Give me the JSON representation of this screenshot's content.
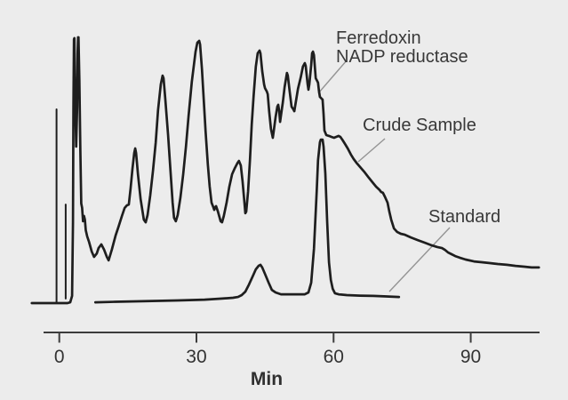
{
  "figure": {
    "kind": "chromatogram",
    "background_color": "#ececec"
  },
  "colors": {
    "trace": "#1e1e1e",
    "axis": "#3c3c3c",
    "leader_line": "#949494",
    "text": "#383838"
  },
  "labels": {
    "annotation_peak_line1": "Ferredoxin",
    "annotation_peak_line2": "NADP reductase",
    "annotation_crude": "Crude Sample",
    "annotation_standard": "Standard",
    "x_axis_title": "Min"
  },
  "chart_data": {
    "type": "line",
    "title": "",
    "xlabel": "Min",
    "ylabel": "",
    "y_units": "detector response, normalized 0-1 (no y-axis drawn)",
    "xlim": [
      -6,
      105
    ],
    "grid": false,
    "legend_position": "inline-annotations",
    "x_ticks": [
      {
        "t": 0,
        "label": "0"
      },
      {
        "t": 30,
        "label": "30"
      },
      {
        "t": 60,
        "label": "60"
      },
      {
        "t": 90,
        "label": "90"
      }
    ],
    "annotations": [
      {
        "text": "Ferredoxin NADP reductase",
        "target_series": "Crude Sample",
        "target_t_min": 56.5
      },
      {
        "text": "Crude Sample",
        "target_series": "Crude Sample",
        "target_t_min": 65
      },
      {
        "text": "Standard",
        "target_series": "Standard",
        "target_t_min": 73
      }
    ],
    "key_retention_times_min": {
      "standard_main_peak": 57.3,
      "standard_minor_peak": 44.0,
      "crude_major_peaks": [
        16.6,
        22.6,
        30.6,
        39.3,
        43.8,
        47.9,
        49.8,
        53.7,
        55.5
      ]
    },
    "event_marks": [
      {
        "name": "injection-mark-a",
        "t": -0.6,
        "v1": 0.003,
        "v2": 0.729
      },
      {
        "name": "injection-mark-b",
        "t": 1.4,
        "v1": 0.017,
        "v2": 0.371
      }
    ],
    "series": [
      {
        "name": "Crude Sample",
        "points": [
          [
            -6.0,
            0
          ],
          [
            -1.3,
            0
          ],
          [
            1.8,
            0
          ],
          [
            2.4,
            0.003
          ],
          [
            2.8,
            0.027
          ],
          [
            3.0,
            0.304
          ],
          [
            3.1,
            0.739
          ],
          [
            3.2,
            0.993
          ],
          [
            3.3,
            0.997
          ],
          [
            3.4,
            0.873
          ],
          [
            3.6,
            0.672
          ],
          [
            3.7,
            0.589
          ],
          [
            3.9,
            0.739
          ],
          [
            4.0,
            0.94
          ],
          [
            4.1,
            1.0
          ],
          [
            4.2,
            1.0
          ],
          [
            4.4,
            0.839
          ],
          [
            4.6,
            0.572
          ],
          [
            4.8,
            0.375
          ],
          [
            5.0,
            0.358
          ],
          [
            5.2,
            0.308
          ],
          [
            5.4,
            0.328
          ],
          [
            5.6,
            0.314
          ],
          [
            5.8,
            0.274
          ],
          [
            6.1,
            0.251
          ],
          [
            6.5,
            0.231
          ],
          [
            7.1,
            0.194
          ],
          [
            7.6,
            0.174
          ],
          [
            8.2,
            0.187
          ],
          [
            8.6,
            0.207
          ],
          [
            9.2,
            0.221
          ],
          [
            9.8,
            0.201
          ],
          [
            10.4,
            0.174
          ],
          [
            10.8,
            0.161
          ],
          [
            11.5,
            0.201
          ],
          [
            12.3,
            0.254
          ],
          [
            12.9,
            0.284
          ],
          [
            13.7,
            0.328
          ],
          [
            14.3,
            0.358
          ],
          [
            14.8,
            0.368
          ],
          [
            15.2,
            0.371
          ],
          [
            15.6,
            0.431
          ],
          [
            16.0,
            0.505
          ],
          [
            16.4,
            0.565
          ],
          [
            16.6,
            0.582
          ],
          [
            16.8,
            0.565
          ],
          [
            17.2,
            0.485
          ],
          [
            17.8,
            0.391
          ],
          [
            18.5,
            0.314
          ],
          [
            18.9,
            0.304
          ],
          [
            19.3,
            0.331
          ],
          [
            19.9,
            0.405
          ],
          [
            20.5,
            0.498
          ],
          [
            21.1,
            0.605
          ],
          [
            21.6,
            0.726
          ],
          [
            22.2,
            0.823
          ],
          [
            22.6,
            0.856
          ],
          [
            22.8,
            0.846
          ],
          [
            23.2,
            0.766
          ],
          [
            23.8,
            0.632
          ],
          [
            24.4,
            0.478
          ],
          [
            24.8,
            0.378
          ],
          [
            25.1,
            0.321
          ],
          [
            25.5,
            0.308
          ],
          [
            25.9,
            0.331
          ],
          [
            26.5,
            0.398
          ],
          [
            27.1,
            0.485
          ],
          [
            27.7,
            0.589
          ],
          [
            28.3,
            0.706
          ],
          [
            29.0,
            0.833
          ],
          [
            29.8,
            0.946
          ],
          [
            30.2,
            0.98
          ],
          [
            30.6,
            0.987
          ],
          [
            30.8,
            0.973
          ],
          [
            31.2,
            0.88
          ],
          [
            31.6,
            0.766
          ],
          [
            32.0,
            0.645
          ],
          [
            32.5,
            0.522
          ],
          [
            32.9,
            0.438
          ],
          [
            33.3,
            0.378
          ],
          [
            33.7,
            0.361
          ],
          [
            33.9,
            0.351
          ],
          [
            34.1,
            0.361
          ],
          [
            34.3,
            0.365
          ],
          [
            34.7,
            0.344
          ],
          [
            35.3,
            0.308
          ],
          [
            35.6,
            0.304
          ],
          [
            36.0,
            0.328
          ],
          [
            36.6,
            0.378
          ],
          [
            37.2,
            0.438
          ],
          [
            37.8,
            0.485
          ],
          [
            38.4,
            0.508
          ],
          [
            39.0,
            0.528
          ],
          [
            39.3,
            0.535
          ],
          [
            39.7,
            0.518
          ],
          [
            40.1,
            0.458
          ],
          [
            40.5,
            0.378
          ],
          [
            40.7,
            0.338
          ],
          [
            40.9,
            0.344
          ],
          [
            41.3,
            0.421
          ],
          [
            41.7,
            0.538
          ],
          [
            42.1,
            0.672
          ],
          [
            42.5,
            0.779
          ],
          [
            43.0,
            0.89
          ],
          [
            43.4,
            0.94
          ],
          [
            43.8,
            0.95
          ],
          [
            44.0,
            0.94
          ],
          [
            44.4,
            0.873
          ],
          [
            44.8,
            0.823
          ],
          [
            45.0,
            0.809
          ],
          [
            45.4,
            0.796
          ],
          [
            45.6,
            0.786
          ],
          [
            45.9,
            0.722
          ],
          [
            46.3,
            0.656
          ],
          [
            46.7,
            0.622
          ],
          [
            46.9,
            0.645
          ],
          [
            47.3,
            0.699
          ],
          [
            47.7,
            0.739
          ],
          [
            47.9,
            0.746
          ],
          [
            48.1,
            0.722
          ],
          [
            48.3,
            0.682
          ],
          [
            48.5,
            0.706
          ],
          [
            48.9,
            0.756
          ],
          [
            49.3,
            0.813
          ],
          [
            49.7,
            0.856
          ],
          [
            49.8,
            0.866
          ],
          [
            50.0,
            0.856
          ],
          [
            50.4,
            0.796
          ],
          [
            50.8,
            0.739
          ],
          [
            51.2,
            0.729
          ],
          [
            51.4,
            0.722
          ],
          [
            51.8,
            0.763
          ],
          [
            52.2,
            0.806
          ],
          [
            52.8,
            0.849
          ],
          [
            53.3,
            0.89
          ],
          [
            53.7,
            0.903
          ],
          [
            53.9,
            0.893
          ],
          [
            54.3,
            0.826
          ],
          [
            54.5,
            0.803
          ],
          [
            54.7,
            0.823
          ],
          [
            55.1,
            0.896
          ],
          [
            55.3,
            0.94
          ],
          [
            55.5,
            0.946
          ],
          [
            55.7,
            0.933
          ],
          [
            56.1,
            0.846
          ],
          [
            56.4,
            0.836
          ],
          [
            56.6,
            0.829
          ],
          [
            56.8,
            0.799
          ],
          [
            57.0,
            0.776
          ],
          [
            57.4,
            0.769
          ],
          [
            57.6,
            0.766
          ],
          [
            57.8,
            0.712
          ],
          [
            58.0,
            0.649
          ],
          [
            58.4,
            0.632
          ],
          [
            59.0,
            0.629
          ],
          [
            59.6,
            0.625
          ],
          [
            60.1,
            0.622
          ],
          [
            60.5,
            0.625
          ],
          [
            61.1,
            0.629
          ],
          [
            61.5,
            0.625
          ],
          [
            61.9,
            0.615
          ],
          [
            62.5,
            0.599
          ],
          [
            63.1,
            0.582
          ],
          [
            63.8,
            0.559
          ],
          [
            64.4,
            0.542
          ],
          [
            65.0,
            0.528
          ],
          [
            65.8,
            0.512
          ],
          [
            66.8,
            0.492
          ],
          [
            67.7,
            0.472
          ],
          [
            68.5,
            0.455
          ],
          [
            69.3,
            0.438
          ],
          [
            70.1,
            0.425
          ],
          [
            70.4,
            0.418
          ],
          [
            70.8,
            0.415
          ],
          [
            71.2,
            0.401
          ],
          [
            71.8,
            0.378
          ],
          [
            72.2,
            0.344
          ],
          [
            72.6,
            0.314
          ],
          [
            73.2,
            0.281
          ],
          [
            73.9,
            0.268
          ],
          [
            74.7,
            0.261
          ],
          [
            75.5,
            0.258
          ],
          [
            76.9,
            0.247
          ],
          [
            78.4,
            0.237
          ],
          [
            80.0,
            0.227
          ],
          [
            81.5,
            0.217
          ],
          [
            82.7,
            0.211
          ],
          [
            83.7,
            0.207
          ],
          [
            84.3,
            0.201
          ],
          [
            85.0,
            0.191
          ],
          [
            85.8,
            0.184
          ],
          [
            86.6,
            0.177
          ],
          [
            87.6,
            0.171
          ],
          [
            88.9,
            0.164
          ],
          [
            90.7,
            0.157
          ],
          [
            92.4,
            0.154
          ],
          [
            94.0,
            0.151
          ],
          [
            95.9,
            0.147
          ],
          [
            97.9,
            0.144
          ],
          [
            99.8,
            0.14
          ],
          [
            101.7,
            0.137
          ],
          [
            103.3,
            0.134
          ],
          [
            104.9,
            0.134
          ]
        ]
      },
      {
        "name": "Standard",
        "points": [
          [
            7.9,
            0.003
          ],
          [
            12.3,
            0.005
          ],
          [
            18.1,
            0.007
          ],
          [
            25.9,
            0.01
          ],
          [
            31.8,
            0.013
          ],
          [
            35.6,
            0.017
          ],
          [
            38.0,
            0.02
          ],
          [
            39.1,
            0.023
          ],
          [
            39.9,
            0.03
          ],
          [
            40.7,
            0.043
          ],
          [
            41.5,
            0.07
          ],
          [
            42.3,
            0.1
          ],
          [
            43.0,
            0.127
          ],
          [
            43.6,
            0.14
          ],
          [
            44.0,
            0.144
          ],
          [
            44.4,
            0.134
          ],
          [
            45.0,
            0.11
          ],
          [
            45.8,
            0.077
          ],
          [
            46.5,
            0.05
          ],
          [
            47.3,
            0.04
          ],
          [
            48.5,
            0.033
          ],
          [
            50.2,
            0.033
          ],
          [
            52.2,
            0.033
          ],
          [
            53.7,
            0.033
          ],
          [
            54.5,
            0.04
          ],
          [
            55.1,
            0.077
          ],
          [
            55.7,
            0.204
          ],
          [
            56.3,
            0.421
          ],
          [
            56.6,
            0.538
          ],
          [
            57.0,
            0.605
          ],
          [
            57.2,
            0.615
          ],
          [
            57.6,
            0.615
          ],
          [
            57.8,
            0.589
          ],
          [
            58.2,
            0.488
          ],
          [
            58.6,
            0.304
          ],
          [
            59.0,
            0.154
          ],
          [
            59.4,
            0.087
          ],
          [
            59.8,
            0.054
          ],
          [
            60.3,
            0.037
          ],
          [
            61.1,
            0.033
          ],
          [
            62.9,
            0.03
          ],
          [
            65.8,
            0.028
          ],
          [
            68.7,
            0.027
          ],
          [
            71.6,
            0.025
          ],
          [
            74.3,
            0.023
          ]
        ]
      }
    ]
  }
}
